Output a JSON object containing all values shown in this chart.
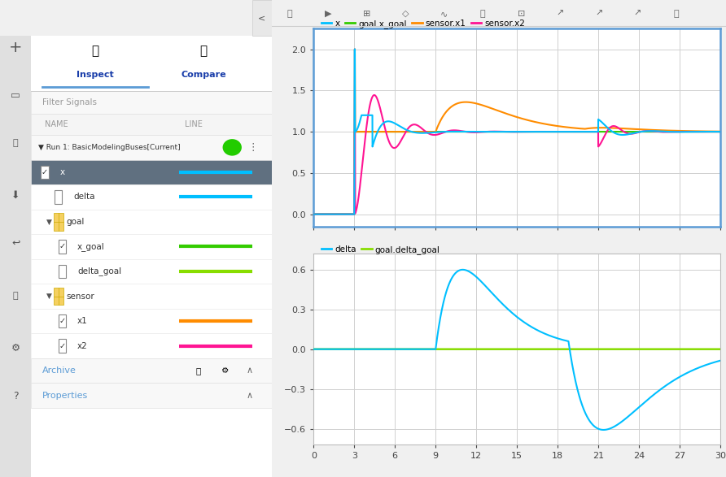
{
  "bg_color": "#f0f0f0",
  "plot_bg": "#ffffff",
  "grid_color": "#d0d0d0",
  "plot_border_color": "#5b9bd5",
  "colors": {
    "x": "#00bfff",
    "x_goal": "#33cc00",
    "sensor_x1": "#ff8c00",
    "sensor_x2": "#ff1493",
    "delta": "#00bfff",
    "delta_goal": "#88dd00"
  },
  "plot1_legend": [
    "x",
    "goal.x_goal",
    "sensor.x1",
    "sensor.x2"
  ],
  "plot1_legend_colors": [
    "#00bfff",
    "#33cc00",
    "#ff8c00",
    "#ff1493"
  ],
  "plot2_legend": [
    "delta",
    "goal.delta_goal"
  ],
  "plot2_legend_colors": [
    "#00bfff",
    "#88dd00"
  ],
  "x_ticks": [
    0,
    3,
    6,
    9,
    12,
    15,
    18,
    21,
    24,
    27,
    30
  ],
  "plot1_ylim": [
    -0.15,
    2.25
  ],
  "plot1_yticks": [
    0.0,
    0.5,
    1.0,
    1.5,
    2.0
  ],
  "plot2_ylim": [
    -0.72,
    0.72
  ],
  "plot2_yticks": [
    -0.6,
    -0.3,
    0.0,
    0.3,
    0.6
  ]
}
